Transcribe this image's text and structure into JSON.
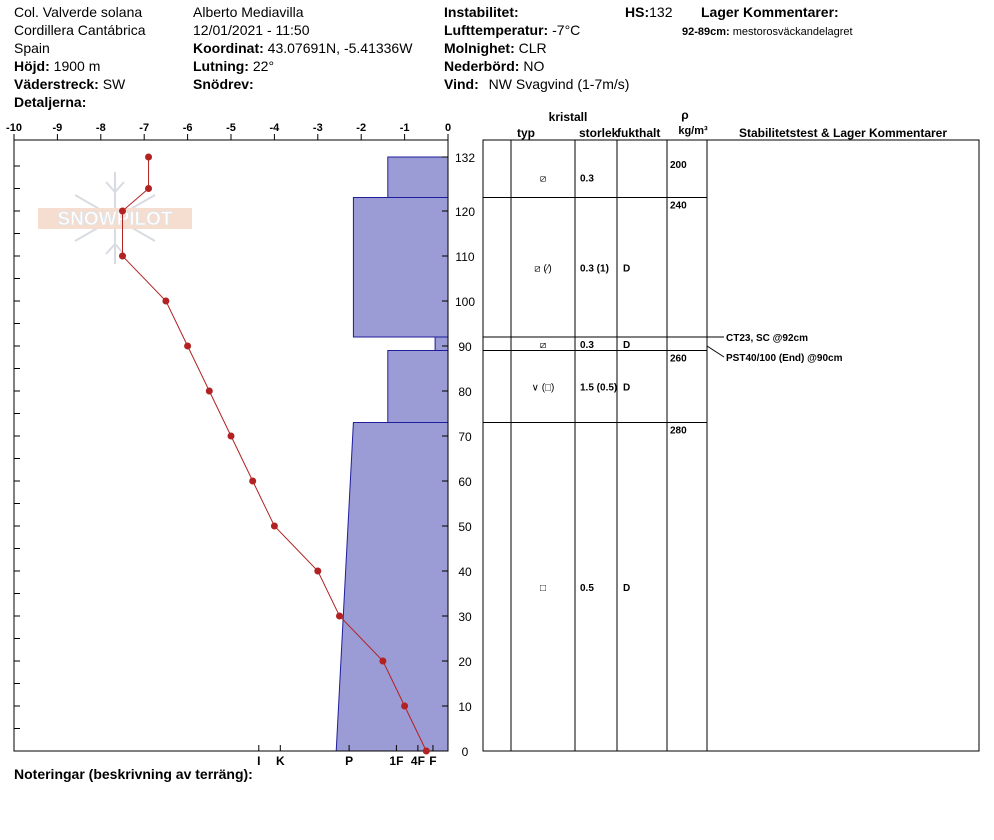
{
  "header": {
    "site": "Col. Valverde solana",
    "range": "Cordillera Cantábrica",
    "country": "Spain",
    "elevation_label": "Höjd:",
    "elevation": "1900 m",
    "aspect_label": "Väderstreck:",
    "aspect": "SW",
    "details_label": "Detaljerna:",
    "observer": "Alberto Mediavilla",
    "datetime": "12/01/2021 - 11:50",
    "coord_label": "Koordinat:",
    "coord": "43.07691N, -5.41336W",
    "slope_label": "Lutning:",
    "slope": "22°",
    "drift_label": "Snödrev:",
    "instability_label": "Instabilitet:",
    "airtemp_label": "Lufttemperatur:",
    "airtemp": "-7°C",
    "sky_label": "Molnighet:",
    "sky": "CLR",
    "precip_label": "Nederbörd:",
    "precip": "NO",
    "wind_label": "Vind:",
    "wind": "NW Svagvind (1-7m/s)",
    "hs_label": "HS:",
    "hs": "132",
    "layer_comments_label": "Lager Kommentarer:",
    "layer_comment_range": "92-89cm:",
    "layer_comment_text": "mestorosväckandelagret",
    "notes_label": "Noteringar (beskrivning av terräng):"
  },
  "logo_text": "SNOWPILOT",
  "colors": {
    "hardness_fill": "#9b9bd6",
    "hardness_stroke": "#1e1e9a",
    "temp_line": "#b22222",
    "temp_point": "#b22222"
  },
  "columns": {
    "crystal": "kristall",
    "type": "typ",
    "size": "storlek",
    "moisture": "fukthalt",
    "rho": "ρ",
    "rho_unit": "kg/m³",
    "stability": "Stabilitetstest & Lager Kommentarer"
  },
  "chart_data": {
    "type": "snow_profile",
    "temperature_axis": {
      "ticks": [
        "-10",
        "-9",
        "-8",
        "-7",
        "-6",
        "-5",
        "-4",
        "-3",
        "-2",
        "-1",
        "0"
      ],
      "range": [
        -10,
        0
      ]
    },
    "height_axis": {
      "ticks": [
        "132",
        "120",
        "110",
        "100",
        "90",
        "80",
        "70",
        "60",
        "50",
        "40",
        "30",
        "20",
        "10",
        "0"
      ],
      "range": [
        0,
        132
      ]
    },
    "hardness_axis": {
      "labels": [
        "I",
        "K",
        "P",
        "1F",
        "4F",
        "F"
      ],
      "values": [
        4.4,
        3.9,
        2.3,
        1.2,
        0.7,
        0.35
      ]
    },
    "temperature_profile": [
      {
        "height": 132,
        "temp": -6.9
      },
      {
        "height": 125,
        "temp": -6.9
      },
      {
        "height": 120,
        "temp": -7.5
      },
      {
        "height": 110,
        "temp": -7.5
      },
      {
        "height": 100,
        "temp": -6.5
      },
      {
        "height": 90,
        "temp": -6.0
      },
      {
        "height": 80,
        "temp": -5.5
      },
      {
        "height": 70,
        "temp": -5.0
      },
      {
        "height": 60,
        "temp": -4.5
      },
      {
        "height": 50,
        "temp": -4.0
      },
      {
        "height": 40,
        "temp": -3.0
      },
      {
        "height": 30,
        "temp": -2.5
      },
      {
        "height": 20,
        "temp": -1.5
      },
      {
        "height": 10,
        "temp": -1.0
      },
      {
        "height": 0,
        "temp": -0.5
      }
    ],
    "hardness_layers": [
      {
        "top": 132,
        "bottom": 123,
        "hardness_top": 1.4,
        "hardness_bottom": 1.4
      },
      {
        "top": 123,
        "bottom": 92,
        "hardness_top": 2.2,
        "hardness_bottom": 2.2
      },
      {
        "top": 92,
        "bottom": 89,
        "hardness_top": 0.3,
        "hardness_bottom": 0.3
      },
      {
        "top": 89,
        "bottom": 73,
        "hardness_top": 1.4,
        "hardness_bottom": 1.4
      },
      {
        "top": 73,
        "bottom": 0,
        "hardness_top": 2.2,
        "hardness_bottom": 2.6
      }
    ],
    "layers": [
      {
        "top": 132,
        "bottom": 123,
        "typ": "⧄",
        "size": "0.3",
        "moisture": ""
      },
      {
        "top": 123,
        "bottom": 92,
        "typ": "⧄ (⁄)",
        "size": "0.3 (1)",
        "moisture": "D"
      },
      {
        "top": 92,
        "bottom": 89,
        "typ": "⧄",
        "size": "0.3",
        "moisture": "D"
      },
      {
        "top": 89,
        "bottom": 73,
        "typ": "∨ (□)",
        "size": "1.5 (0.5)",
        "moisture": "D"
      },
      {
        "top": 73,
        "bottom": 0,
        "typ": "□",
        "size": "0.5",
        "moisture": "D"
      }
    ],
    "densities": [
      {
        "value": "200",
        "height": 132
      },
      {
        "value": "240",
        "height": 123
      },
      {
        "value": "260",
        "height": 89
      },
      {
        "value": "280",
        "height": 73
      }
    ],
    "stability_tests": [
      {
        "label": "CT23, SC @92cm",
        "height": 92
      },
      {
        "label": "PST40/100 (End) @90cm",
        "height": 90
      }
    ]
  }
}
